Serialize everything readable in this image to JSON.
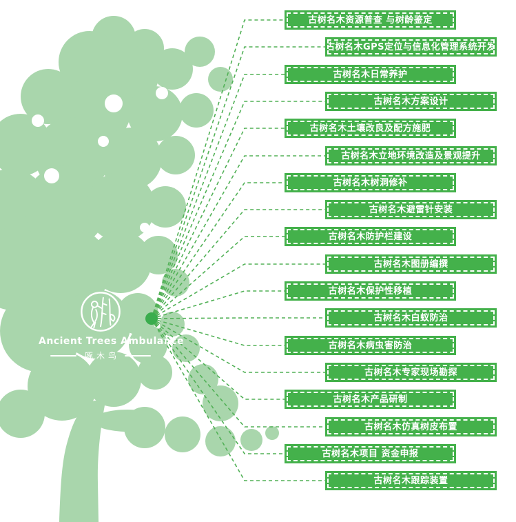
{
  "logo": {
    "title": "Ancient Trees Ambulance",
    "subtitle": "啄木鸟",
    "emblem_icon": "woodpecker-in-circle"
  },
  "colors": {
    "tree_green": "#a9d6ac",
    "box_green": "#44b14b",
    "connector_green": "#52b157",
    "hub_dot_green": "#3aad4d",
    "label_text": "#ffffff"
  },
  "services": [
    {
      "label": "古树名木资源普查 与树龄鉴定"
    },
    {
      "label": "古树名木GPS定位与信息化管理系统开发"
    },
    {
      "label": "古树名木日常养护"
    },
    {
      "label": "古树名木方案设计"
    },
    {
      "label": "古树名木土壤改良及配方施肥"
    },
    {
      "label": "古树名木立地环境改造及景观提升"
    },
    {
      "label": "古树名木树洞修补"
    },
    {
      "label": "古树名木避雷针安装"
    },
    {
      "label": "古树名木防护栏建设"
    },
    {
      "label": "古树名木图册编撰"
    },
    {
      "label": "古树名木保护性移植"
    },
    {
      "label": "古树名木白蚁防治"
    },
    {
      "label": "古树名木病虫害防治"
    },
    {
      "label": "古树名木专家现场勘探"
    },
    {
      "label": "古树名木产品研制"
    },
    {
      "label": "古树名木仿真树皮布置"
    },
    {
      "label": "古树名木项目 资金申报"
    },
    {
      "label": "古树名木跟踪装置"
    }
  ]
}
